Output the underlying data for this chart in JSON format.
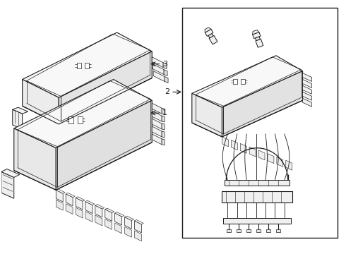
{
  "bg_color": "#ffffff",
  "line_color": "#1a1a1a",
  "label_1": "1",
  "label_2": "2",
  "label_3": "3",
  "figsize": [
    4.9,
    3.6
  ],
  "dpi": 100
}
